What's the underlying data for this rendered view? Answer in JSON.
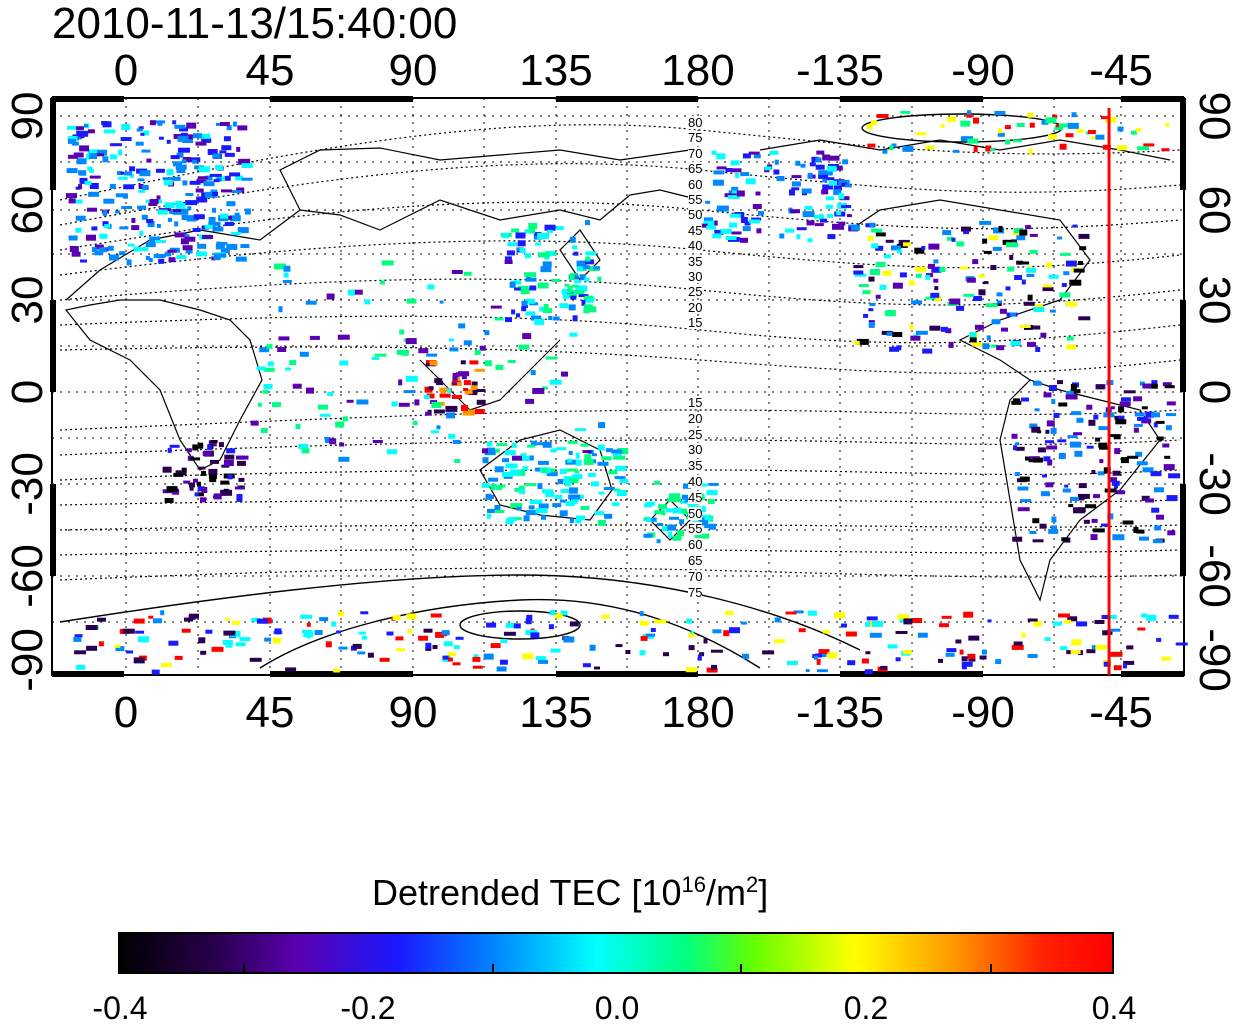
{
  "title": "2010-11-13/15:40:00",
  "map": {
    "lon_ticks": [
      "0",
      "45",
      "90",
      "135",
      "180",
      "-135",
      "-90",
      "-45"
    ],
    "lat_ticks_left": [
      "90",
      "60",
      "30",
      "0",
      "-30",
      "-60",
      "-90"
    ],
    "lat_ticks_right": [
      "90",
      "60",
      "30",
      "0",
      "-30",
      "-60",
      "-90"
    ],
    "contour_labels_north": [
      "80",
      "75",
      "70",
      "65",
      "60",
      "55",
      "50",
      "45",
      "40",
      "35",
      "30",
      "25",
      "20",
      "15"
    ],
    "contour_labels_south": [
      "15",
      "20",
      "25",
      "30",
      "35",
      "40",
      "45",
      "50",
      "55",
      "60",
      "65",
      "70",
      "75"
    ],
    "marker_longitude": -50,
    "marker_color": "#ff0000"
  },
  "colorbar": {
    "title_main": "Detrended TEC  [10",
    "title_sup1": "16",
    "title_mid": "/m",
    "title_sup2": "2",
    "title_end": "]",
    "ticks": [
      "-0.4",
      "-0.2",
      "0.0",
      "0.2",
      "0.4"
    ],
    "min": -0.4,
    "max": 0.4
  },
  "colors": {
    "low": "#000000",
    "mid_low": "#1a1aff",
    "zero": "#00ffff",
    "mid_high": "#ffff00",
    "high": "#ff0000"
  }
}
